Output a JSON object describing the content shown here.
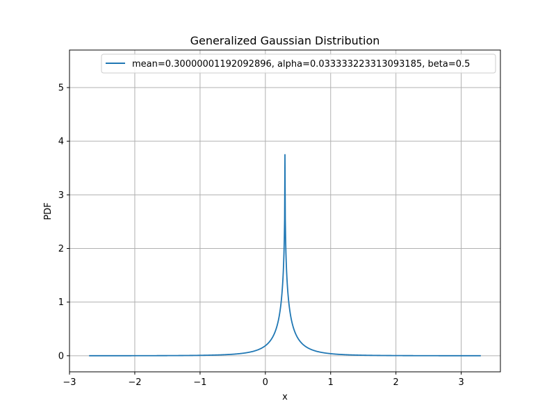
{
  "chart_data": {
    "type": "line",
    "title": "Generalized Gaussian Distribution",
    "xlabel": "x",
    "ylabel": "PDF",
    "xlim": [
      -3.0,
      3.6
    ],
    "ylim": [
      -0.3,
      5.7
    ],
    "x_ticks": [
      -3,
      -2,
      -1,
      0,
      1,
      2,
      3
    ],
    "x_tick_labels": [
      "−3",
      "−2",
      "−1",
      "0",
      "1",
      "2",
      "3"
    ],
    "y_ticks": [
      0,
      1,
      2,
      3,
      4,
      5
    ],
    "y_tick_labels": [
      "0",
      "1",
      "2",
      "3",
      "4",
      "5"
    ],
    "grid": true,
    "legend_position": "top-right",
    "series": [
      {
        "name": "mean=0.30000001192092896, alpha=0.033333223313093185, beta=0.5",
        "color": "#1f77b4",
        "params": {
          "mean": 0.30000001192092896,
          "alpha": 0.033333223313093185,
          "beta": 0.5
        },
        "x_range": [
          -2.7,
          3.3
        ]
      }
    ]
  }
}
